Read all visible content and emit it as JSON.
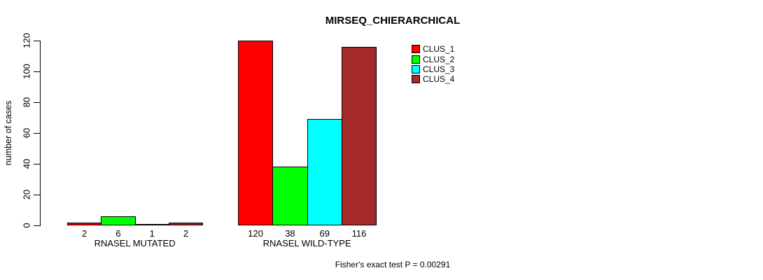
{
  "chart_data": {
    "type": "bar",
    "title": "MIRSEQ_CHIERARCHICAL",
    "ylabel": "number of cases",
    "xlabel": "",
    "ylim": [
      0,
      120
    ],
    "yticks": [
      0,
      20,
      40,
      60,
      80,
      100,
      120
    ],
    "grid": false,
    "legend_position": "top-right",
    "groups": [
      {
        "label": "RNASEL MUTATED"
      },
      {
        "label": "RNASEL WILD-TYPE"
      }
    ],
    "series": [
      {
        "name": "CLUS_1",
        "color": "#FF0000",
        "values": [
          2,
          120
        ]
      },
      {
        "name": "CLUS_2",
        "color": "#00FF00",
        "values": [
          6,
          38
        ]
      },
      {
        "name": "CLUS_3",
        "color": "#00FFFF",
        "values": [
          1,
          69
        ]
      },
      {
        "name": "CLUS_4",
        "color": "#A52A2A",
        "values": [
          2,
          116
        ]
      }
    ],
    "annotation": "Fisher's exact test P = 0.00291"
  },
  "colors": {
    "background": "#FFFFFF",
    "axis": "#000000",
    "text": "#000000"
  }
}
